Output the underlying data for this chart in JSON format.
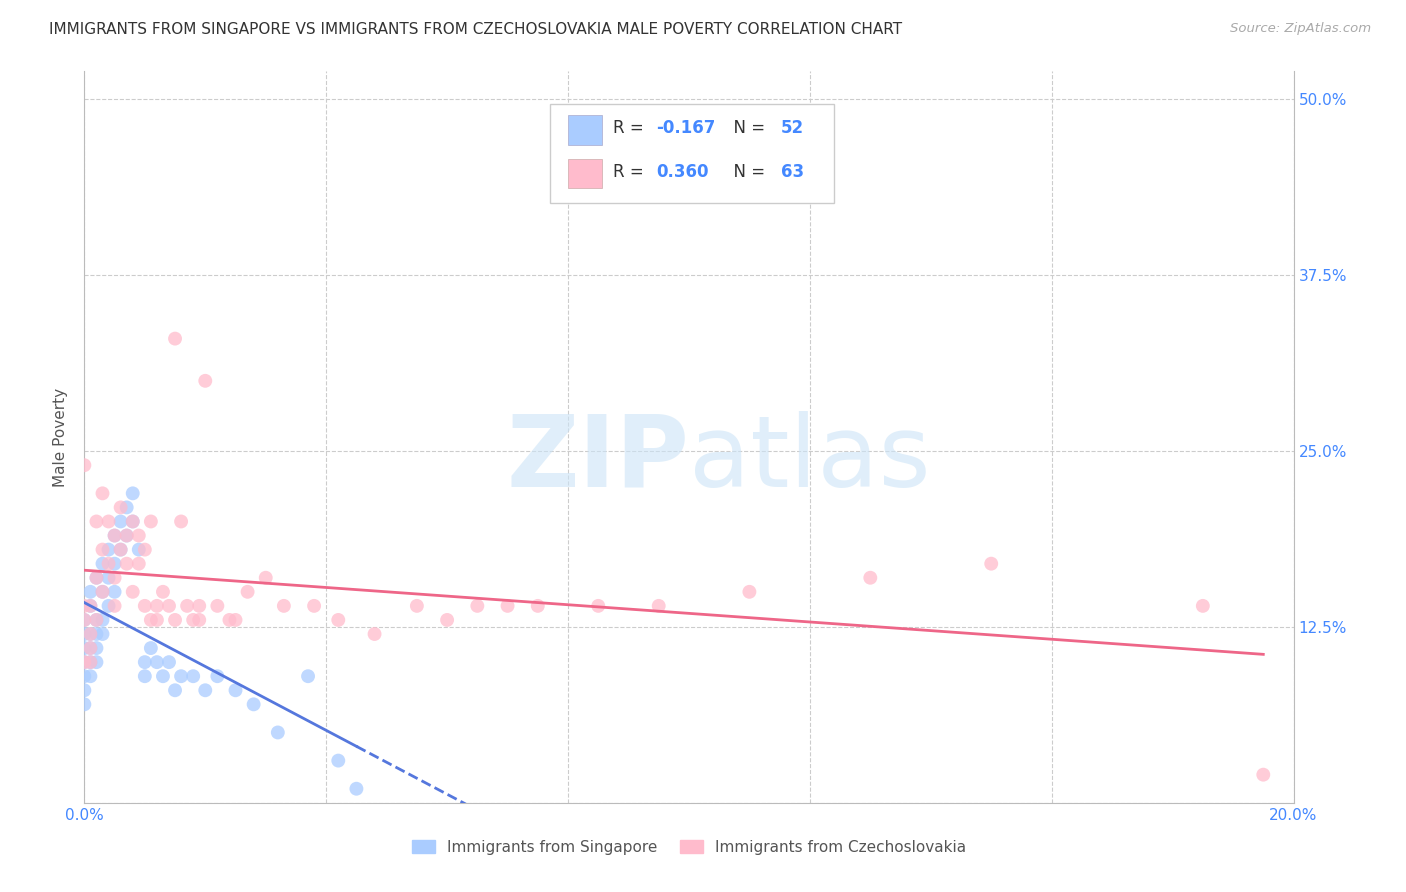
{
  "title": "IMMIGRANTS FROM SINGAPORE VS IMMIGRANTS FROM CZECHOSLOVAKIA MALE POVERTY CORRELATION CHART",
  "source": "Source: ZipAtlas.com",
  "ylabel": "Male Poverty",
  "xlim": [
    0.0,
    0.2
  ],
  "ylim": [
    0.0,
    0.52
  ],
  "xticks": [
    0.0,
    0.04,
    0.08,
    0.12,
    0.16,
    0.2
  ],
  "xticklabels": [
    "0.0%",
    "",
    "",
    "",
    "",
    "20.0%"
  ],
  "yticks": [
    0.0,
    0.125,
    0.25,
    0.375,
    0.5
  ],
  "yticklabels": [
    "",
    "12.5%",
    "25.0%",
    "37.5%",
    "50.0%"
  ],
  "legend1_label": "Immigrants from Singapore",
  "legend2_label": "Immigrants from Czechoslovakia",
  "color_singapore": "#aaccff",
  "color_czechoslovakia": "#ffbbcc",
  "line_color_singapore": "#5577dd",
  "line_color_czechoslovakia": "#ee6688",
  "background_color": "#ffffff",
  "grid_color": "#cccccc"
}
